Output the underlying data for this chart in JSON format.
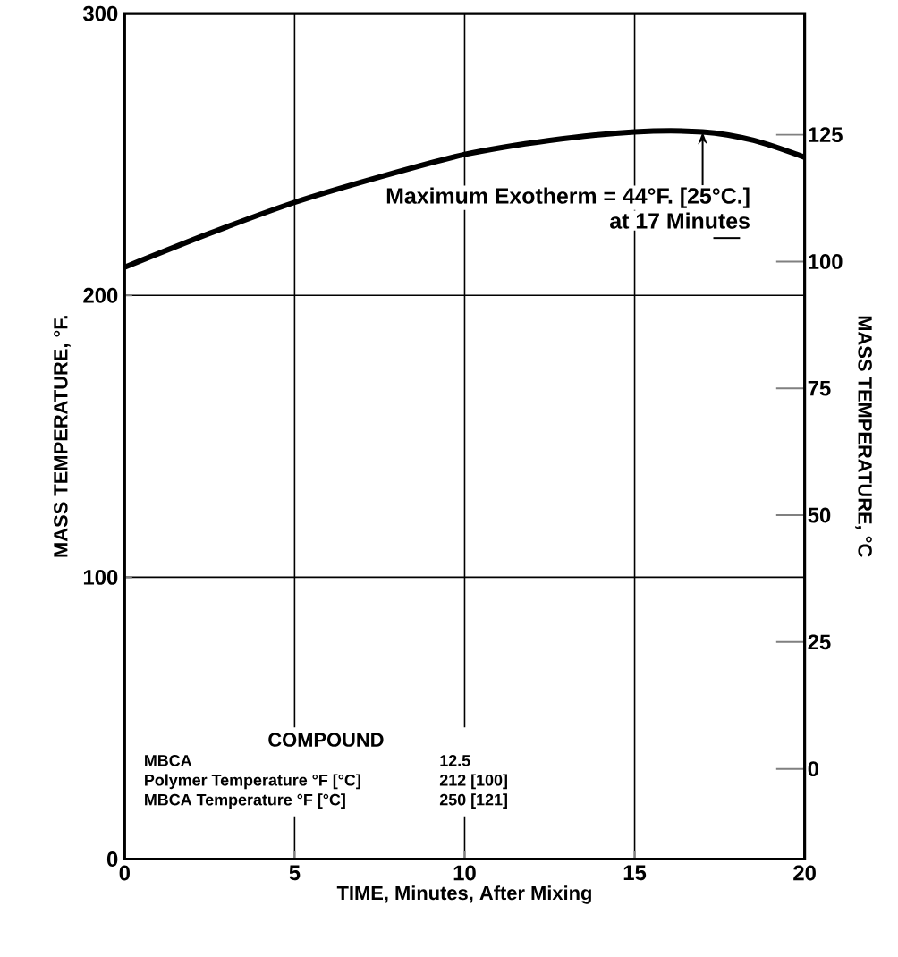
{
  "chart_data": {
    "type": "line",
    "xlabel": "TIME, Minutes, After Mixing",
    "ylabel": "MASS TEMPERATURE, °F.",
    "y2label": "MASS TEMPERATURE, °C",
    "x": [
      0,
      2.5,
      5,
      7.5,
      10,
      12.5,
      15,
      17,
      18.5,
      20
    ],
    "series": [
      {
        "color": "#000000",
        "values": [
          210,
          222,
          233,
          242,
          250,
          255,
          258,
          258,
          255,
          249
        ]
      }
    ],
    "xlim": [
      0,
      20
    ],
    "xticks": [
      0,
      5,
      10,
      15,
      20
    ],
    "ylim": [
      0,
      300
    ],
    "yticks": [
      0,
      100,
      200,
      300
    ],
    "y2lim": [
      -17.78,
      148.89
    ],
    "y2ticks": [
      0,
      25,
      50,
      75,
      100,
      125
    ],
    "grid": true,
    "marker": "none",
    "line_style": "solid",
    "annotations": [
      {
        "text": "Maximum Exotherm = 44°F. [25°C.]",
        "x": 17,
        "y": 258
      },
      "at 17 Minutes",
      "COMPOUND",
      "MBCA",
      "12.5",
      "Polymer Temperature °F [°C]",
      "212 [100]",
      "MBCA Temperature °F [°C]",
      "250 [121]"
    ]
  }
}
